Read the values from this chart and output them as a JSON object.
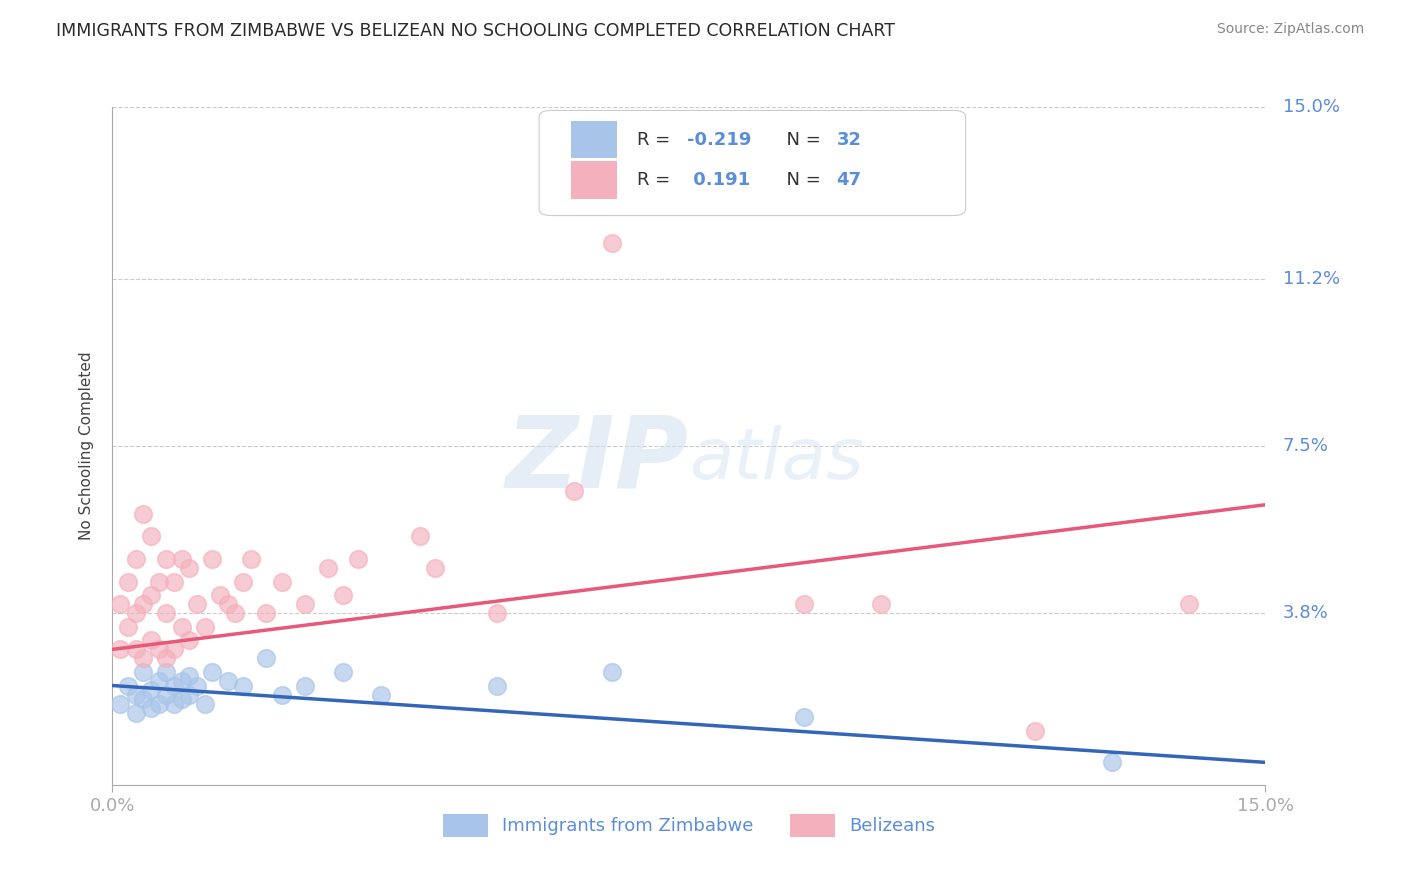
{
  "title": "IMMIGRANTS FROM ZIMBABWE VS BELIZEAN NO SCHOOLING COMPLETED CORRELATION CHART",
  "source": "Source: ZipAtlas.com",
  "ylabel": "No Schooling Completed",
  "xlim": [
    0.0,
    0.15
  ],
  "ylim": [
    0.0,
    0.15
  ],
  "ytick_vals": [
    0.0,
    0.038,
    0.075,
    0.112,
    0.15
  ],
  "ytick_right_labels": [
    "",
    "3.8%",
    "7.5%",
    "11.2%",
    "15.0%"
  ],
  "series1_label": "Immigrants from Zimbabwe",
  "series2_label": "Belizeans",
  "series1_R": -0.219,
  "series1_N": 32,
  "series2_R": 0.191,
  "series2_N": 47,
  "series1_color": "#a8c4e8",
  "series2_color": "#f4b0bc",
  "series1_line_color": "#3366bb",
  "series2_line_color": "#e85878",
  "watermark_zip": "ZIP",
  "watermark_atlas": "atlas",
  "background_color": "#ffffff",
  "axis_label_color": "#5b8dd9",
  "title_color": "#2a2a2a",
  "legend_text_color": "#333333",
  "series1_x": [
    0.001,
    0.002,
    0.003,
    0.003,
    0.004,
    0.004,
    0.005,
    0.005,
    0.006,
    0.006,
    0.007,
    0.007,
    0.008,
    0.008,
    0.009,
    0.009,
    0.01,
    0.01,
    0.011,
    0.012,
    0.013,
    0.015,
    0.017,
    0.02,
    0.022,
    0.025,
    0.03,
    0.035,
    0.05,
    0.065,
    0.09,
    0.13
  ],
  "series1_y": [
    0.018,
    0.022,
    0.016,
    0.02,
    0.025,
    0.019,
    0.021,
    0.017,
    0.023,
    0.018,
    0.02,
    0.025,
    0.022,
    0.018,
    0.023,
    0.019,
    0.02,
    0.024,
    0.022,
    0.018,
    0.025,
    0.023,
    0.022,
    0.028,
    0.02,
    0.022,
    0.025,
    0.02,
    0.022,
    0.025,
    0.015,
    0.005
  ],
  "series2_x": [
    0.001,
    0.001,
    0.002,
    0.002,
    0.003,
    0.003,
    0.003,
    0.004,
    0.004,
    0.004,
    0.005,
    0.005,
    0.005,
    0.006,
    0.006,
    0.007,
    0.007,
    0.007,
    0.008,
    0.008,
    0.009,
    0.009,
    0.01,
    0.01,
    0.011,
    0.012,
    0.013,
    0.014,
    0.015,
    0.016,
    0.017,
    0.018,
    0.02,
    0.022,
    0.025,
    0.028,
    0.03,
    0.032,
    0.04,
    0.042,
    0.05,
    0.06,
    0.065,
    0.09,
    0.1,
    0.12,
    0.14
  ],
  "series2_y": [
    0.03,
    0.04,
    0.035,
    0.045,
    0.03,
    0.038,
    0.05,
    0.028,
    0.04,
    0.06,
    0.032,
    0.042,
    0.055,
    0.03,
    0.045,
    0.028,
    0.038,
    0.05,
    0.03,
    0.045,
    0.035,
    0.05,
    0.032,
    0.048,
    0.04,
    0.035,
    0.05,
    0.042,
    0.04,
    0.038,
    0.045,
    0.05,
    0.038,
    0.045,
    0.04,
    0.048,
    0.042,
    0.05,
    0.055,
    0.048,
    0.038,
    0.065,
    0.12,
    0.04,
    0.04,
    0.012,
    0.04
  ],
  "blue_line_x0": 0.0,
  "blue_line_y0": 0.022,
  "blue_line_x1": 0.15,
  "blue_line_y1": 0.005,
  "pink_line_x0": 0.0,
  "pink_line_y0": 0.03,
  "pink_line_x1": 0.15,
  "pink_line_y1": 0.062
}
